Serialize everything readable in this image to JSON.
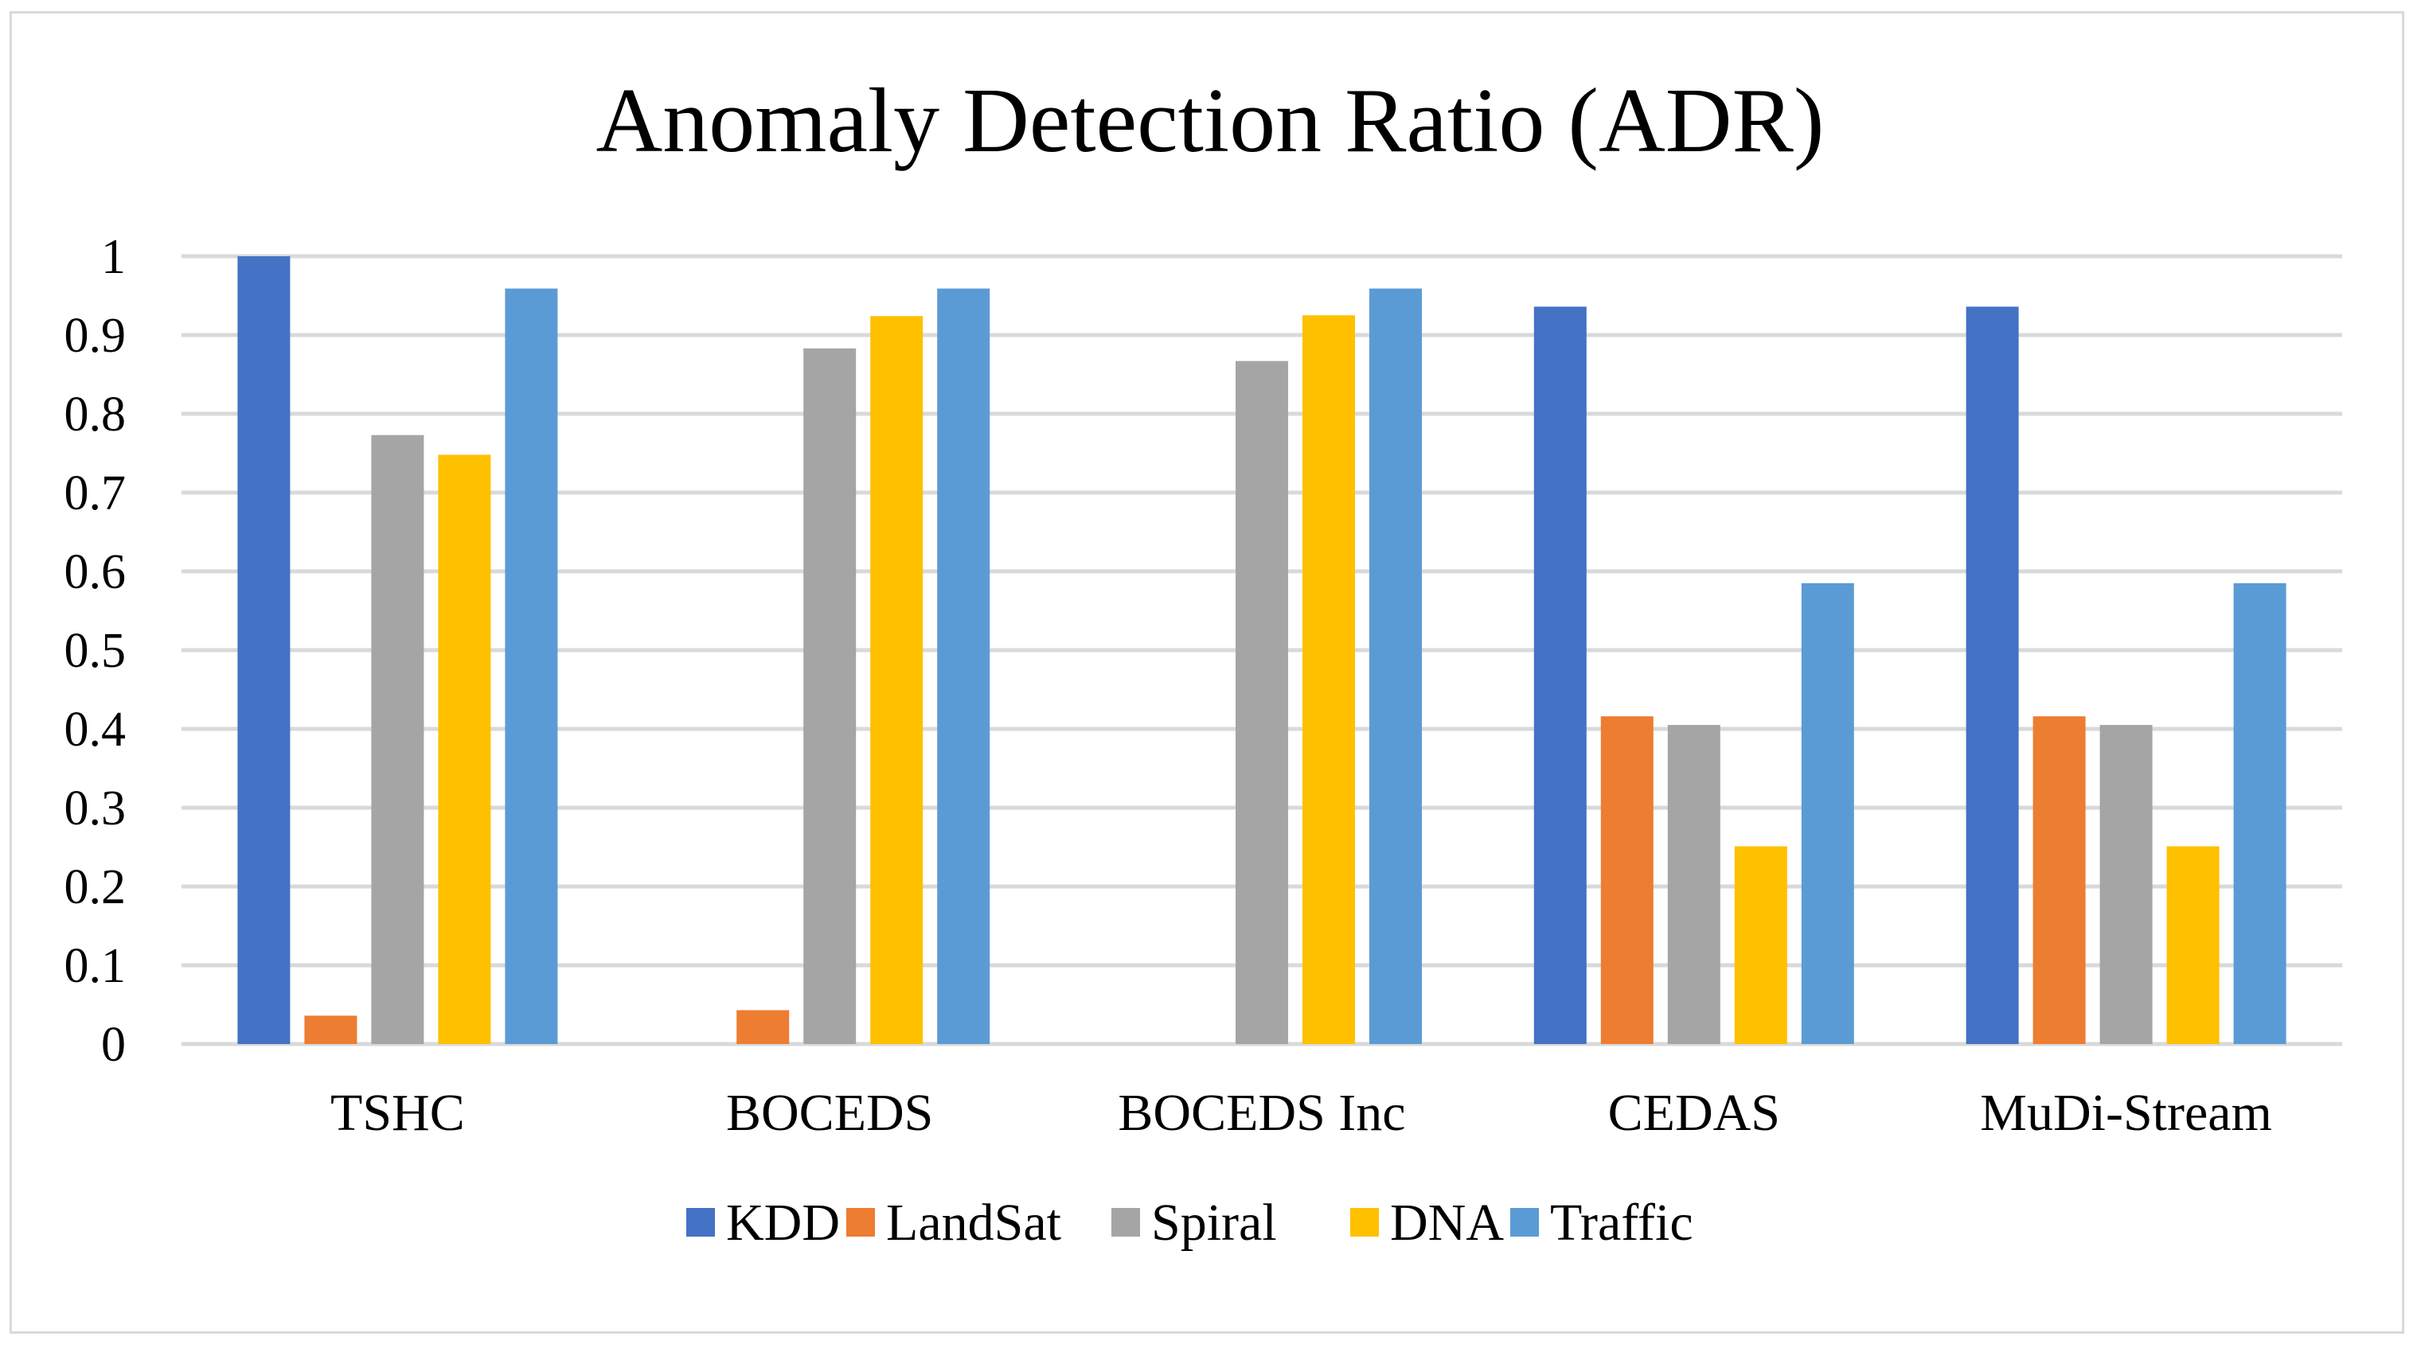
{
  "chart_data": {
    "type": "bar",
    "title": "Anomaly Detection Ratio (ADR)",
    "xlabel": "",
    "ylabel": "",
    "ylim": [
      0,
      1
    ],
    "yticks": [
      "0",
      "0.1",
      "0.2",
      "0.3",
      "0.4",
      "0.5",
      "0.6",
      "0.7",
      "0.8",
      "0.9",
      "1"
    ],
    "grid": true,
    "legend_position": "bottom",
    "categories": [
      "TSHC",
      "BOCEDS",
      "BOCEDS Inc",
      "CEDAS",
      "MuDi-Stream"
    ],
    "series": [
      {
        "name": "KDD",
        "color": "#4472c4",
        "values": [
          1.0,
          0,
          0,
          0.936,
          0.936
        ]
      },
      {
        "name": "LandSat",
        "color": "#ed7d31",
        "values": [
          0.036,
          0.043,
          0,
          0.416,
          0.416
        ]
      },
      {
        "name": "Spiral",
        "color": "#a5a5a5",
        "values": [
          0.773,
          0.883,
          0.867,
          0.405,
          0.405
        ]
      },
      {
        "name": "DNA",
        "color": "#ffc000",
        "values": [
          0.748,
          0.924,
          0.925,
          0.251,
          0.251
        ]
      },
      {
        "name": "Traffic",
        "color": "#5b9bd5",
        "values": [
          0.959,
          0.959,
          0.959,
          0.585,
          0.585
        ]
      }
    ]
  }
}
